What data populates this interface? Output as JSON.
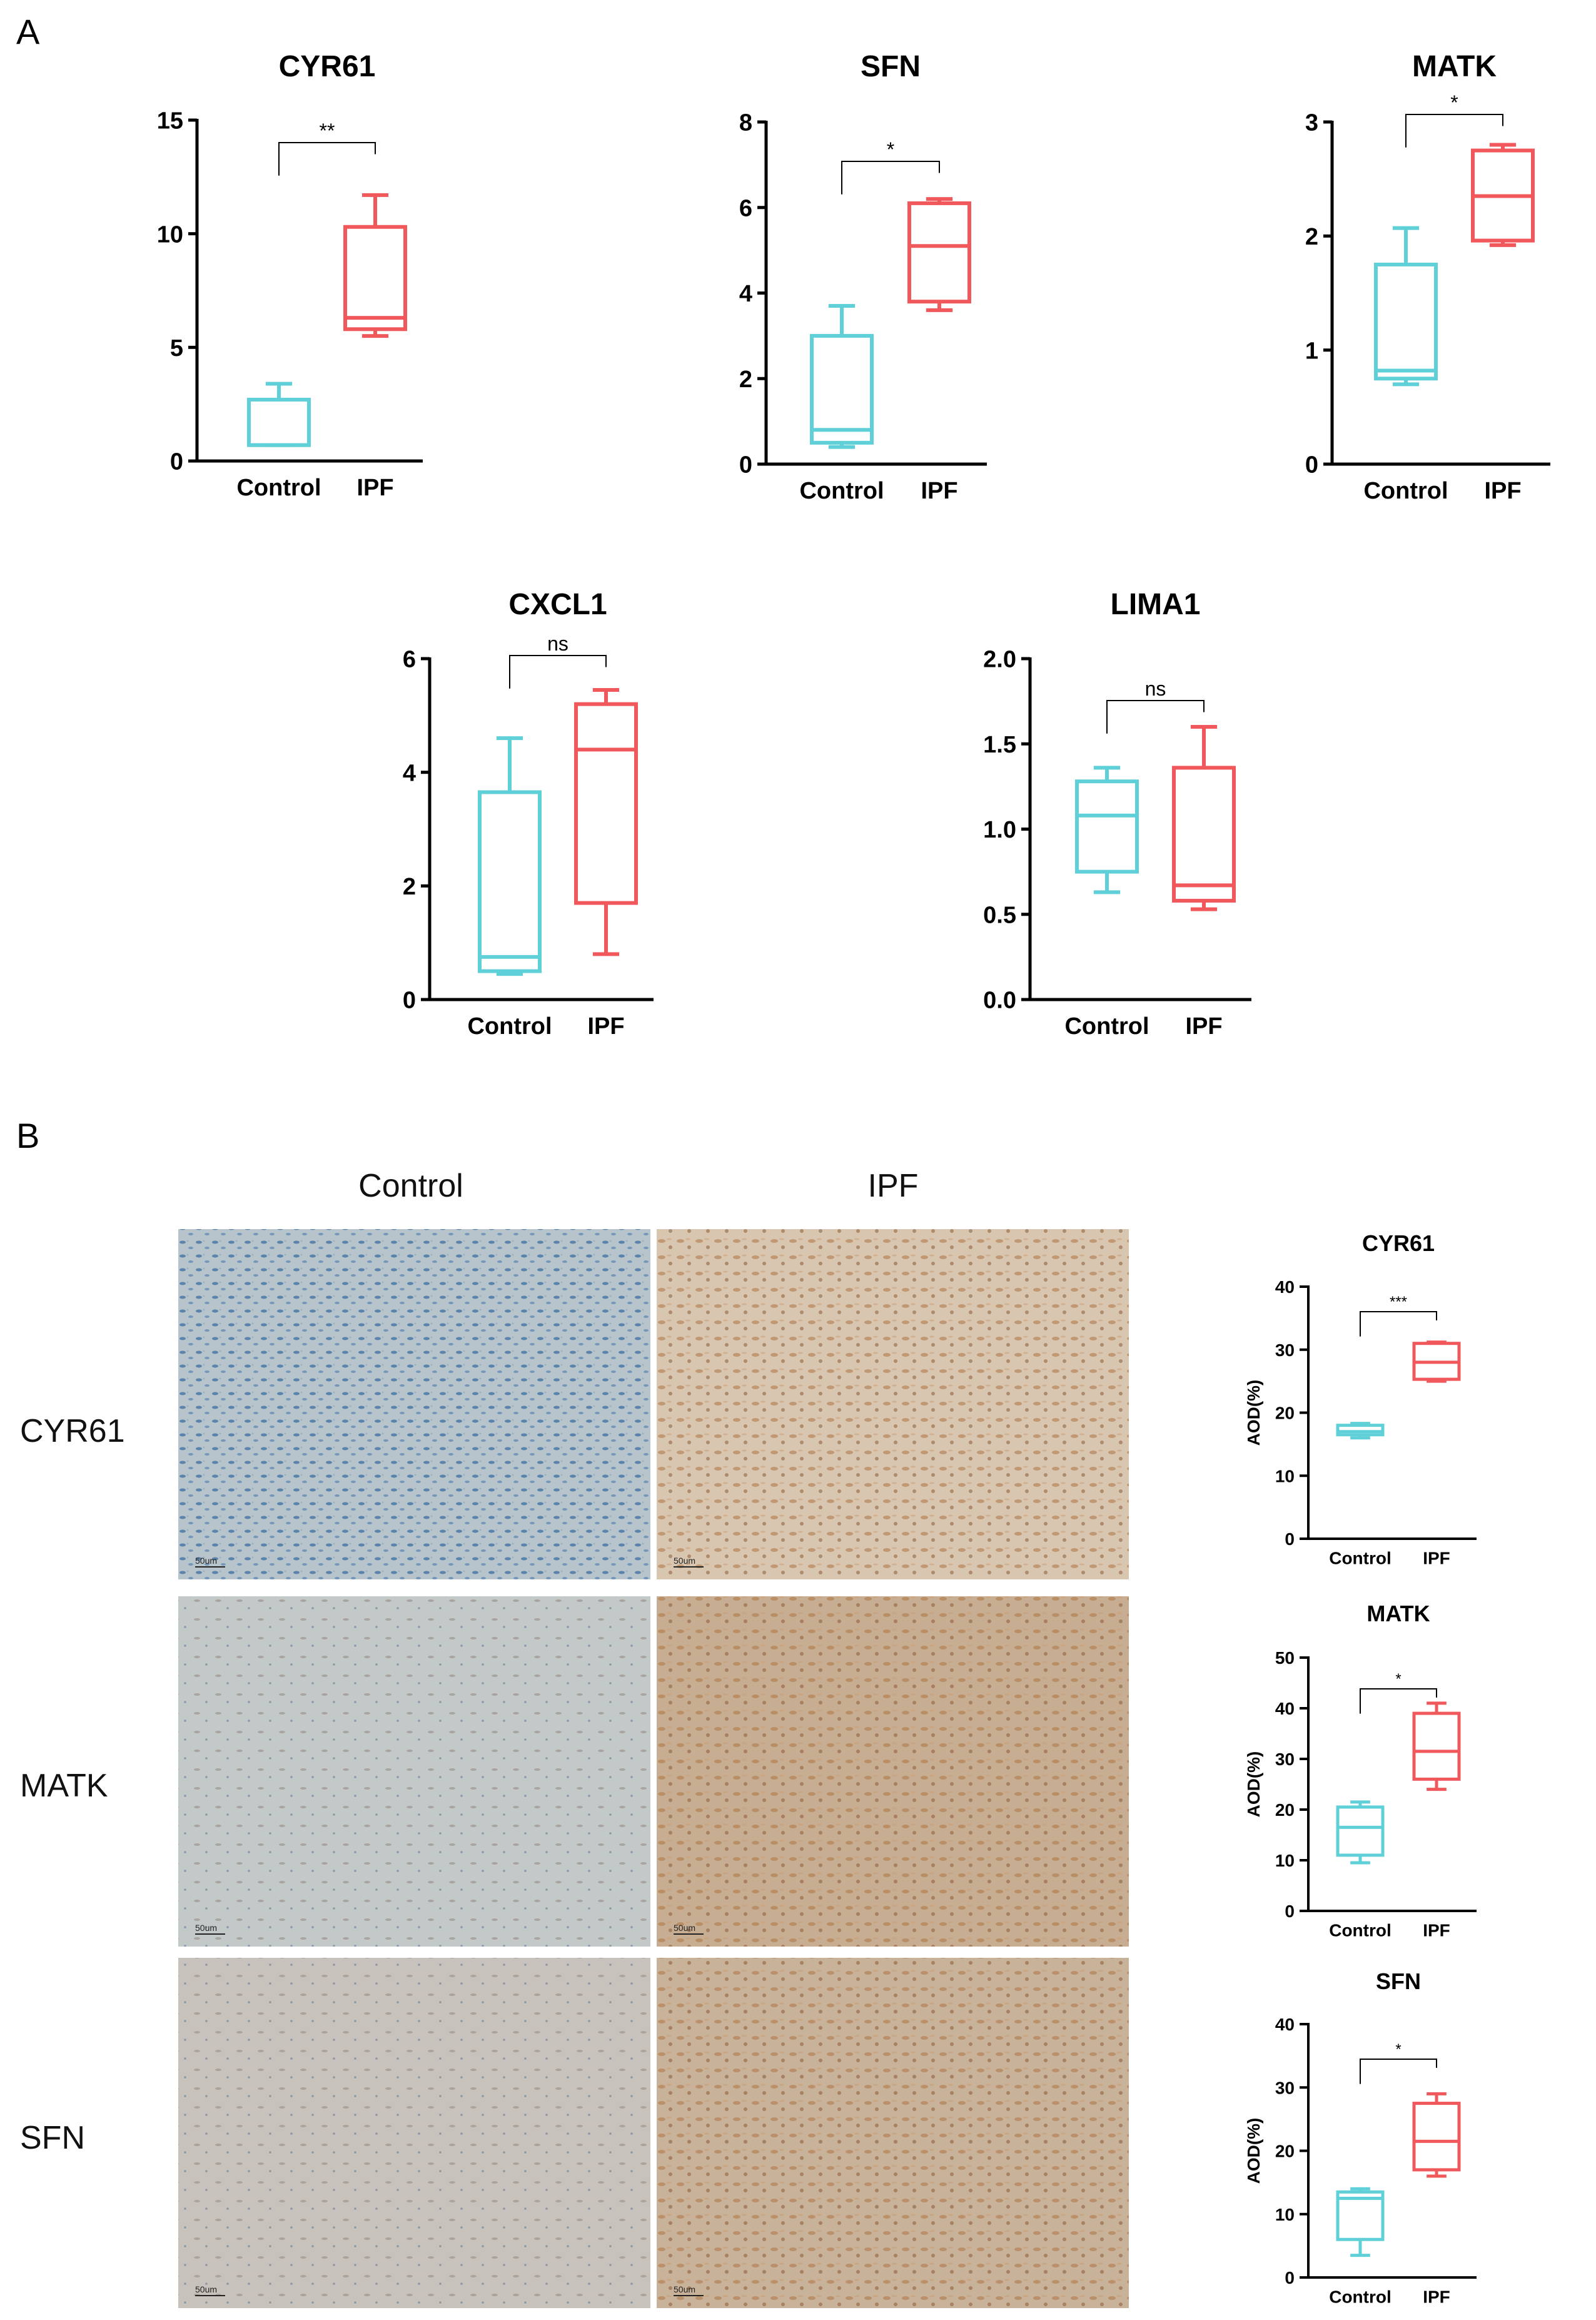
{
  "panels": {
    "a": "A",
    "b": "B"
  },
  "group_colors": {
    "Control": "#5fcfd8",
    "IPF": "#f0585b"
  },
  "micrographs": {
    "columns": [
      "Control",
      "IPF"
    ],
    "rows": [
      "CYR61",
      "MATK",
      "SFN"
    ],
    "scale_bar": "50um",
    "tile_colors": {
      "control_CYR61": "#b7c4cc",
      "ipf_CYR61": "#d8c6b1",
      "control_MATK": "#c3c8c9",
      "ipf_MATK": "#c7ae92",
      "control_SFN": "#c8c2bc",
      "ipf_SFN": "#c9b29a"
    }
  },
  "chart_data": [
    {
      "type": "box",
      "panel": "A",
      "title": "CYR61",
      "categories": [
        "Control",
        "IPF"
      ],
      "ylim": [
        0,
        15
      ],
      "yticks": [
        0,
        5,
        10,
        15
      ],
      "ylabel": "",
      "xlabel": "",
      "boxes": [
        {
          "group": "Control",
          "min": 0.7,
          "q1": 0.7,
          "median": 0.7,
          "q3": 2.7,
          "max": 3.4
        },
        {
          "group": "IPF",
          "min": 5.5,
          "q1": 5.8,
          "median": 6.3,
          "q3": 10.3,
          "max": 11.7
        }
      ],
      "significance": "**"
    },
    {
      "type": "box",
      "panel": "A",
      "title": "SFN",
      "categories": [
        "Control",
        "IPF"
      ],
      "ylim": [
        0,
        8
      ],
      "yticks": [
        0,
        2,
        4,
        6,
        8
      ],
      "ylabel": "",
      "xlabel": "",
      "boxes": [
        {
          "group": "Control",
          "min": 0.4,
          "q1": 0.5,
          "median": 0.8,
          "q3": 3.0,
          "max": 3.7
        },
        {
          "group": "IPF",
          "min": 3.6,
          "q1": 3.8,
          "median": 5.1,
          "q3": 6.1,
          "max": 6.2
        }
      ],
      "significance": "*"
    },
    {
      "type": "box",
      "panel": "A",
      "title": "MATK",
      "categories": [
        "Control",
        "IPF"
      ],
      "ylim": [
        0,
        3
      ],
      "yticks": [
        0,
        1,
        2,
        3
      ],
      "ylabel": "",
      "xlabel": "",
      "boxes": [
        {
          "group": "Control",
          "min": 0.7,
          "q1": 0.75,
          "median": 0.82,
          "q3": 1.75,
          "max": 2.07
        },
        {
          "group": "IPF",
          "min": 1.92,
          "q1": 1.96,
          "median": 2.35,
          "q3": 2.75,
          "max": 2.8
        }
      ],
      "significance": "*"
    },
    {
      "type": "box",
      "panel": "A",
      "title": "CXCL1",
      "categories": [
        "Control",
        "IPF"
      ],
      "ylim": [
        0,
        6
      ],
      "yticks": [
        0,
        2,
        4,
        6
      ],
      "ylabel": "",
      "xlabel": "",
      "boxes": [
        {
          "group": "Control",
          "min": 0.45,
          "q1": 0.5,
          "median": 0.75,
          "q3": 3.65,
          "max": 4.6
        },
        {
          "group": "IPF",
          "min": 0.8,
          "q1": 1.7,
          "median": 4.4,
          "q3": 5.2,
          "max": 5.45
        }
      ],
      "significance": "ns"
    },
    {
      "type": "box",
      "panel": "A",
      "title": "LIMA1",
      "categories": [
        "Control",
        "IPF"
      ],
      "ylim": [
        0,
        2
      ],
      "yticks": [
        "0.0",
        "0.5",
        "1.0",
        "1.5",
        "2.0"
      ],
      "ylabel": "",
      "xlabel": "",
      "boxes": [
        {
          "group": "Control",
          "min": 0.63,
          "q1": 0.75,
          "median": 1.08,
          "q3": 1.28,
          "max": 1.36
        },
        {
          "group": "IPF",
          "min": 0.53,
          "q1": 0.58,
          "median": 0.67,
          "q3": 1.36,
          "max": 1.6
        }
      ],
      "significance": "ns"
    },
    {
      "type": "box",
      "panel": "B",
      "title": "CYR61",
      "categories": [
        "Control",
        "IPF"
      ],
      "ylim": [
        0,
        40
      ],
      "yticks": [
        0,
        10,
        20,
        30,
        40
      ],
      "ylabel": "AOD(%)",
      "xlabel": "",
      "boxes": [
        {
          "group": "Control",
          "min": 16,
          "q1": 16.5,
          "median": 17,
          "q3": 18,
          "max": 18.3
        },
        {
          "group": "IPF",
          "min": 25,
          "q1": 25.3,
          "median": 28,
          "q3": 31,
          "max": 31.2
        }
      ],
      "significance": "***"
    },
    {
      "type": "box",
      "panel": "B",
      "title": "MATK",
      "categories": [
        "Control",
        "IPF"
      ],
      "ylim": [
        0,
        50
      ],
      "yticks": [
        0,
        10,
        20,
        30,
        40,
        50
      ],
      "ylabel": "AOD(%)",
      "xlabel": "",
      "boxes": [
        {
          "group": "Control",
          "min": 9.5,
          "q1": 11,
          "median": 16.5,
          "q3": 20.5,
          "max": 21.5
        },
        {
          "group": "IPF",
          "min": 24,
          "q1": 26,
          "median": 31.5,
          "q3": 39,
          "max": 41
        }
      ],
      "significance": "*"
    },
    {
      "type": "box",
      "panel": "B",
      "title": "SFN",
      "categories": [
        "Control",
        "IPF"
      ],
      "ylim": [
        0,
        40
      ],
      "yticks": [
        0,
        10,
        20,
        30,
        40
      ],
      "ylabel": "AOD(%)",
      "xlabel": "",
      "boxes": [
        {
          "group": "Control",
          "min": 3.5,
          "q1": 6,
          "median": 12.5,
          "q3": 13.5,
          "max": 14
        },
        {
          "group": "IPF",
          "min": 16,
          "q1": 17,
          "median": 21.5,
          "q3": 27.5,
          "max": 29
        }
      ],
      "significance": "*"
    }
  ]
}
